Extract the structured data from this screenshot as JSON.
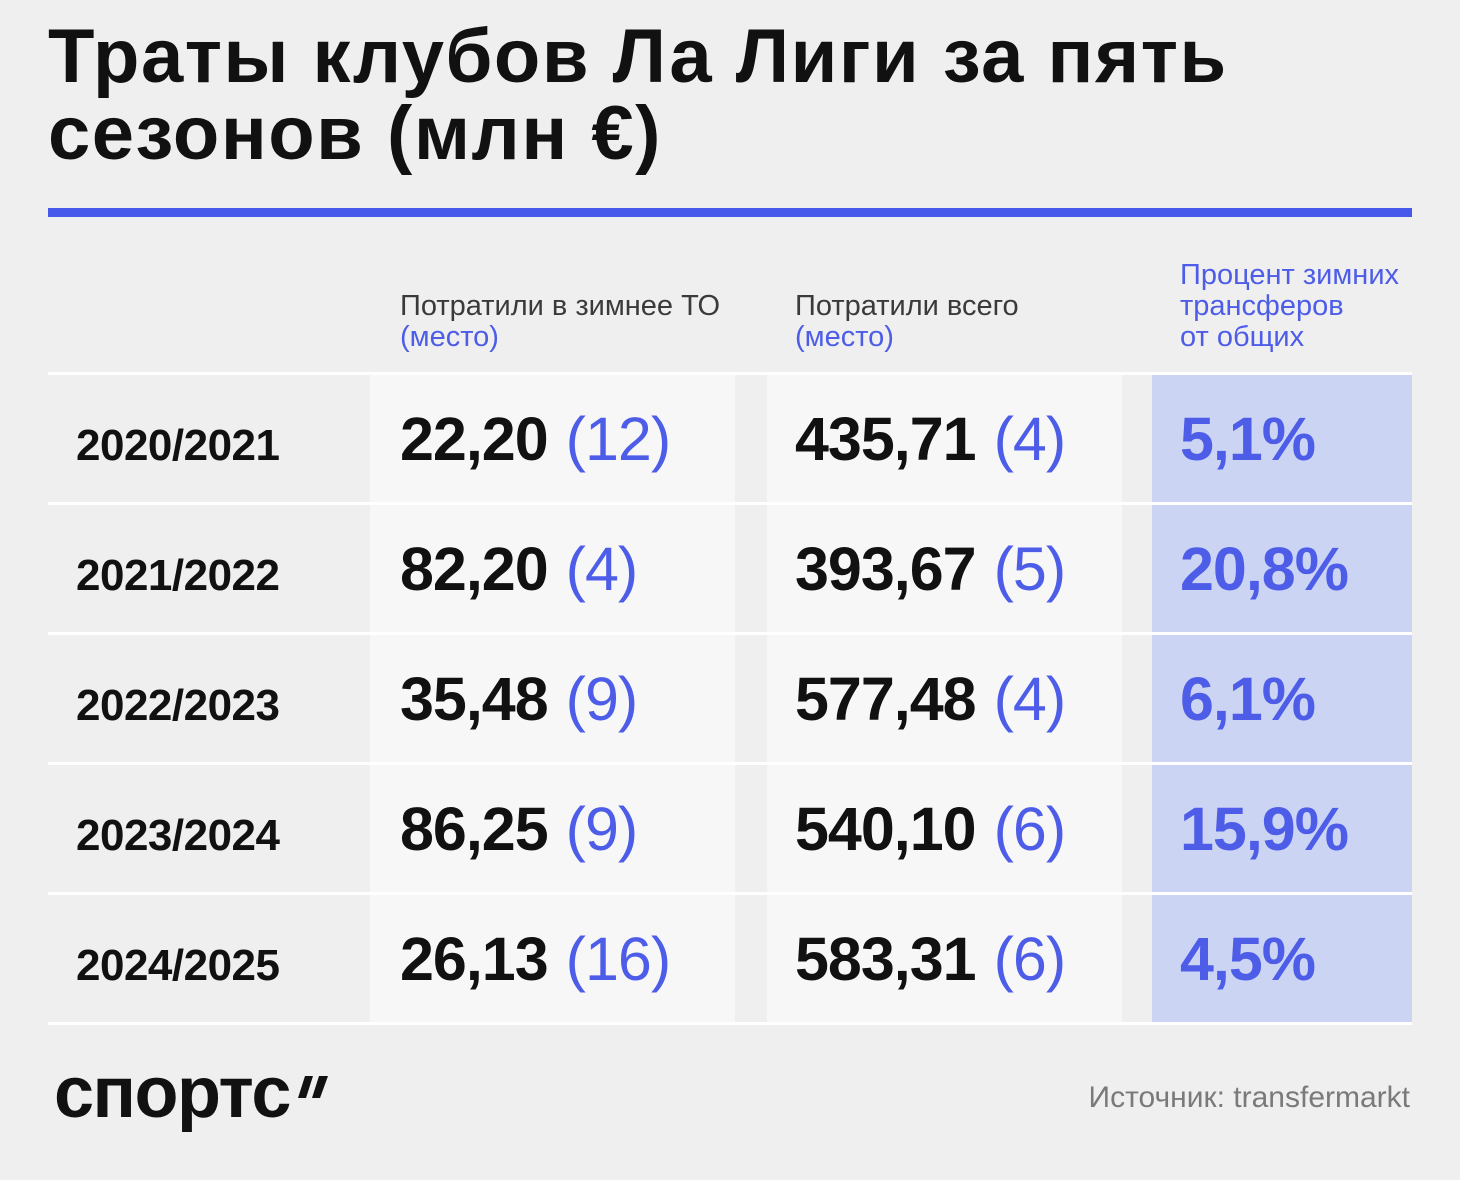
{
  "colors": {
    "background": "#efefef",
    "text": "#111111",
    "accent_blue": "#4d5de8",
    "rule": "#4759ea",
    "cell_background": "#f7f7f7",
    "highlight_background": "#ccd4f4",
    "muted_text": "#7a7a7a"
  },
  "chart_data": {
    "type": "table",
    "title": "Траты клубов Ла Лиги за пять сезонов (млн €)",
    "columns": [
      {
        "label": "Потратили в зимнее ТО",
        "sublabel": "(место)"
      },
      {
        "label": "Потратили всего",
        "sublabel": "(место)"
      },
      {
        "label_lines": [
          "Процент зимних",
          "трансферов",
          "от общих"
        ]
      }
    ],
    "rows": [
      {
        "season": "2020/2021",
        "winter_spend": "22,20",
        "winter_rank": "(12)",
        "total_spend": "435,71",
        "total_rank": "(4)",
        "winter_share": "5,1%"
      },
      {
        "season": "2021/2022",
        "winter_spend": "82,20",
        "winter_rank": "(4)",
        "total_spend": "393,67",
        "total_rank": "(5)",
        "winter_share": "20,8%"
      },
      {
        "season": "2022/2023",
        "winter_spend": "35,48",
        "winter_rank": "(9)",
        "total_spend": "577,48",
        "total_rank": "(4)",
        "winter_share": "6,1%"
      },
      {
        "season": "2023/2024",
        "winter_spend": "86,25",
        "winter_rank": "(9)",
        "total_spend": "540,10",
        "total_rank": "(6)",
        "winter_share": "15,9%"
      },
      {
        "season": "2024/2025",
        "winter_spend": "26,13",
        "winter_rank": "(16)",
        "total_spend": "583,31",
        "total_rank": "(6)",
        "winter_share": "4,5%"
      }
    ]
  },
  "footer": {
    "logo": "спортс",
    "logo_mark_icon": "double-tick-icon",
    "source": "Источник: transfermarkt"
  }
}
